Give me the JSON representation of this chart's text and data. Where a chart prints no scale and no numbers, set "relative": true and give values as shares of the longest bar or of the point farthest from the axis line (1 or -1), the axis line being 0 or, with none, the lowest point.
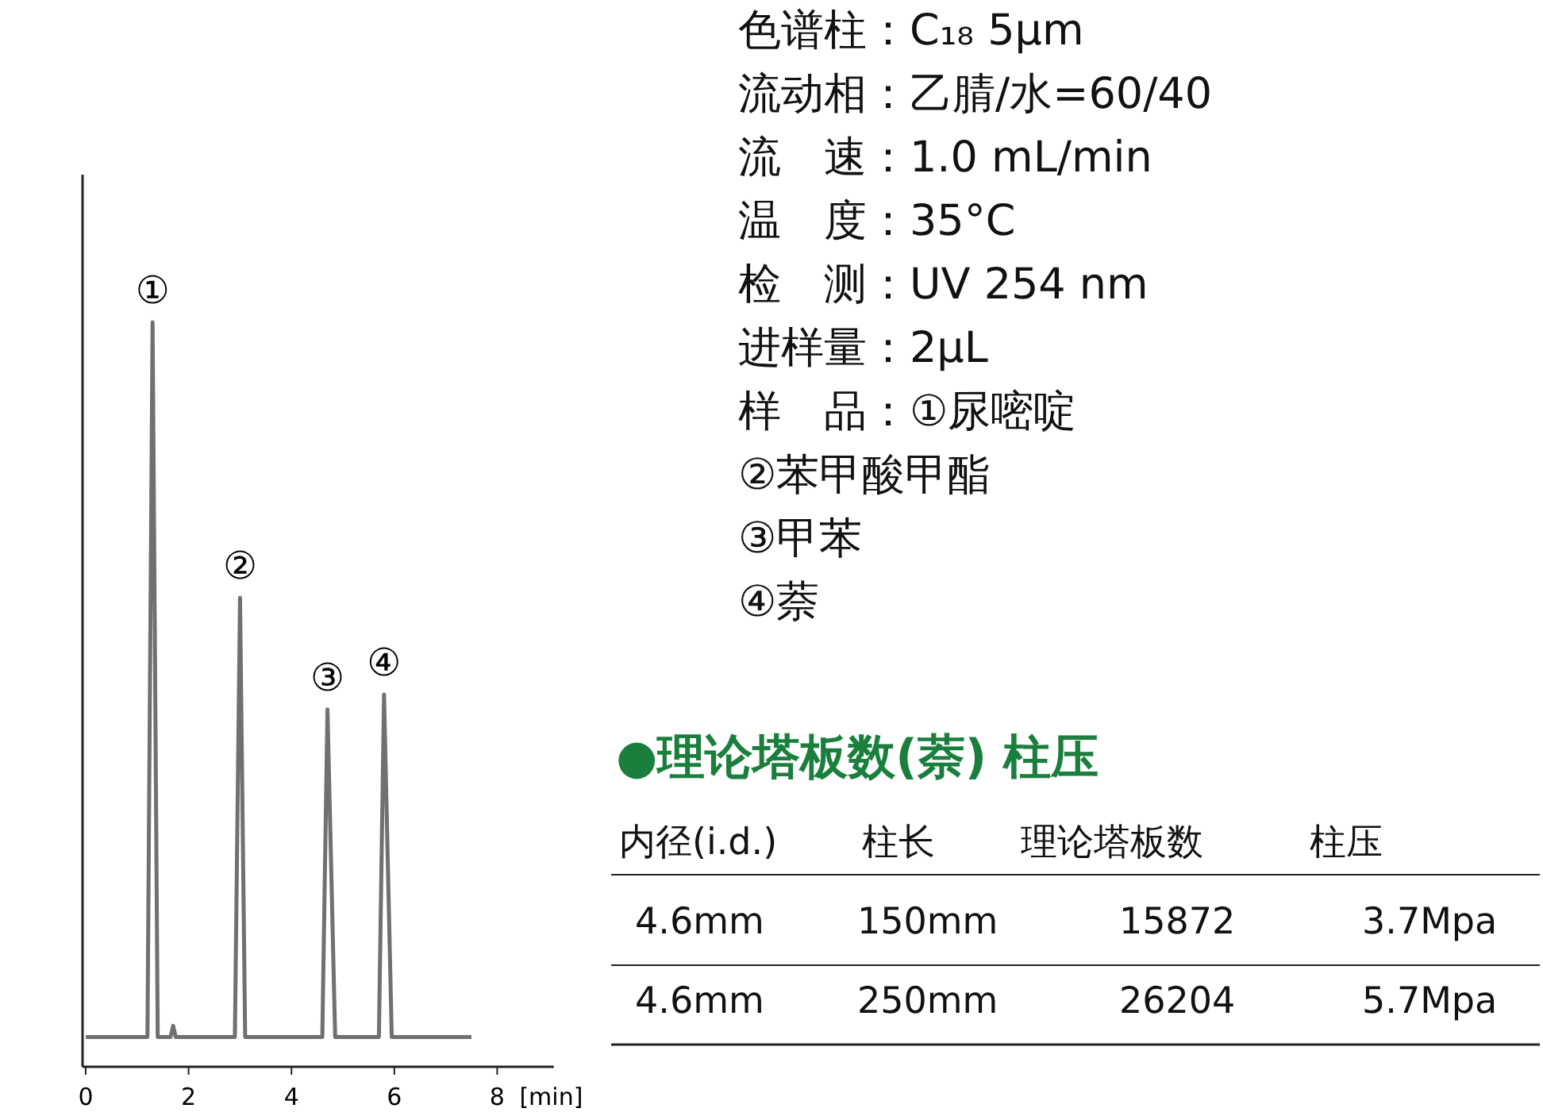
{
  "chart_data": [
    {
      "type": "line",
      "xlabel": "[min]",
      "relative": true,
      "xlim": [
        0,
        9.1
      ],
      "xticks": [
        0,
        2,
        4,
        6,
        8
      ],
      "x": [
        0,
        1.2,
        1.3,
        1.4,
        1.65,
        1.7,
        1.75,
        2.9,
        3.0,
        3.1,
        4.6,
        4.7,
        4.85,
        5.7,
        5.8,
        5.95,
        7.5
      ],
      "series": [
        {
          "color": "#707070",
          "values": [
            0.04,
            0.04,
            1,
            0.04,
            0.04,
            0.055,
            0.04,
            0.04,
            0.63,
            0.04,
            0.04,
            0.48,
            0.04,
            0.04,
            0.5,
            0.04,
            0.04
          ]
        }
      ],
      "annotations": [
        {
          "text": "①",
          "x": 1.3,
          "y": 1
        },
        {
          "text": "②",
          "x": 3.0,
          "y": 0.63
        },
        {
          "text": "③",
          "x": 4.7,
          "y": 0.48
        },
        {
          "text": "④",
          "x": 5.8,
          "y": 0.5
        }
      ]
    },
    {
      "type": "other",
      "annotations": [
        "色谱柱：C₁₈ 5μm",
        "流动相：乙腈/水=60/40",
        "流　速：1.0 mL/min",
        "温　度：35°C",
        "检　测：UV 254 nm",
        "进样量：2μL",
        "样　品：①尿嘧啶",
        "②苯甲酸甲酯",
        "③甲苯",
        "④萘"
      ]
    },
    {
      "type": "other",
      "title": "●理论塔板数(萘) 柱压",
      "annotations": [
        "内径(i.d.)",
        "柱长",
        "理论塔板数",
        "柱压",
        "4.6mm",
        "150mm",
        "15872",
        "3.7Mpa",
        "4.6mm",
        "250mm",
        "26204",
        "5.7Mpa"
      ]
    }
  ]
}
